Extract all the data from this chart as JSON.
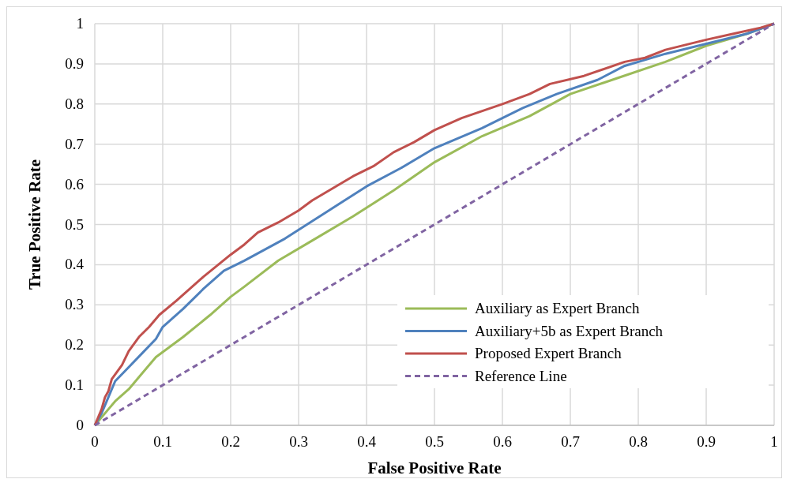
{
  "chart_data": {
    "type": "line",
    "xlabel": "False Positive Rate",
    "ylabel": "True Positive Rate",
    "xlim": [
      0,
      1
    ],
    "ylim": [
      0,
      1
    ],
    "xticks": [
      0,
      0.1,
      0.2,
      0.3,
      0.4,
      0.5,
      0.6,
      0.7,
      0.8,
      0.9,
      1
    ],
    "yticks": [
      0,
      0.1,
      0.2,
      0.3,
      0.4,
      0.5,
      0.6,
      0.7,
      0.8,
      0.9,
      1
    ],
    "grid": true,
    "legend": "bottom right",
    "marker": "none",
    "series": [
      {
        "name": "Auxiliary as Expert Branch",
        "color": "#9bbb59",
        "x": [
          0,
          0.01,
          0.02,
          0.03,
          0.05,
          0.07,
          0.09,
          0.13,
          0.17,
          0.2,
          0.22,
          0.27,
          0.32,
          0.38,
          0.44,
          0.5,
          0.57,
          0.64,
          0.7,
          0.77,
          0.84,
          0.9,
          0.96,
          1
        ],
        "values": [
          0,
          0.02,
          0.04,
          0.06,
          0.09,
          0.13,
          0.17,
          0.22,
          0.275,
          0.32,
          0.345,
          0.41,
          0.46,
          0.52,
          0.585,
          0.655,
          0.72,
          0.77,
          0.825,
          0.865,
          0.905,
          0.945,
          0.975,
          1
        ]
      },
      {
        "name": "Auxiliary+5b as Expert Branch",
        "color": "#4f81bd",
        "x": [
          0,
          0.01,
          0.02,
          0.03,
          0.05,
          0.07,
          0.09,
          0.1,
          0.13,
          0.16,
          0.19,
          0.22,
          0.28,
          0.34,
          0.4,
          0.45,
          0.5,
          0.57,
          0.63,
          0.68,
          0.74,
          0.78,
          0.84,
          0.9,
          0.96,
          1
        ],
        "values": [
          0,
          0.03,
          0.07,
          0.11,
          0.145,
          0.18,
          0.215,
          0.245,
          0.29,
          0.34,
          0.385,
          0.41,
          0.465,
          0.53,
          0.595,
          0.64,
          0.69,
          0.74,
          0.79,
          0.825,
          0.86,
          0.895,
          0.925,
          0.95,
          0.975,
          1
        ]
      },
      {
        "name": "Proposed Expert Branch",
        "color": "#c0504d",
        "x": [
          0,
          0.005,
          0.01,
          0.015,
          0.02,
          0.025,
          0.04,
          0.05,
          0.065,
          0.08,
          0.095,
          0.12,
          0.16,
          0.2,
          0.22,
          0.24,
          0.27,
          0.3,
          0.32,
          0.35,
          0.38,
          0.41,
          0.44,
          0.47,
          0.5,
          0.54,
          0.6,
          0.64,
          0.67,
          0.72,
          0.78,
          0.81,
          0.84,
          0.9,
          0.94,
          0.98,
          1
        ],
        "values": [
          0,
          0.02,
          0.04,
          0.07,
          0.085,
          0.115,
          0.15,
          0.185,
          0.22,
          0.245,
          0.275,
          0.31,
          0.37,
          0.425,
          0.45,
          0.48,
          0.505,
          0.535,
          0.56,
          0.59,
          0.62,
          0.645,
          0.68,
          0.705,
          0.735,
          0.765,
          0.8,
          0.825,
          0.85,
          0.87,
          0.905,
          0.915,
          0.935,
          0.96,
          0.975,
          0.99,
          1
        ]
      },
      {
        "name": "Reference Line",
        "color": "#8064a2",
        "line_style": "dashed",
        "x": [
          0,
          1
        ],
        "values": [
          0,
          1
        ]
      }
    ]
  }
}
